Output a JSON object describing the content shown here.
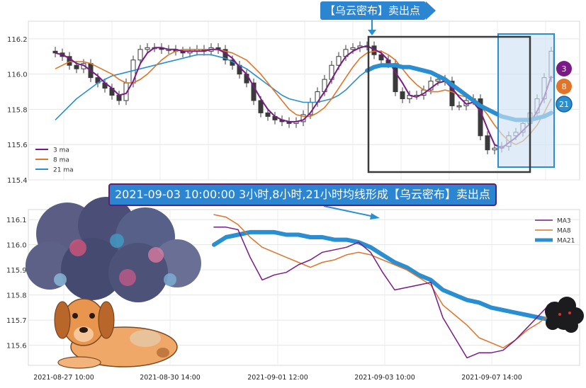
{
  "colors": {
    "ma3": "#7a1a86",
    "ma8": "#e07428",
    "ma21": "#2a8fd0",
    "box_dark": "#3a3a3a",
    "box_blue": "#2a8fd0",
    "candle": "#3a3a3a"
  },
  "top_banner": "【乌云密布】卖出点",
  "mid_banner": "2021-09-03 10:00:00 3小时,8小时,21小时均线形成【乌云密布】卖出点",
  "badges": [
    "3",
    "8",
    "21"
  ],
  "chart_data": [
    {
      "type": "candlestick",
      "ylim": [
        115.4,
        116.3
      ],
      "y_ticks": [
        "116.2",
        "116.0",
        "115.8",
        "115.6",
        "115.4"
      ],
      "legend": {
        "placement": "bottom-left",
        "entries": [
          "3 ma",
          "8 ma",
          "21 ma"
        ]
      },
      "close": [
        116.12,
        116.1,
        116.05,
        116.03,
        116.06,
        115.98,
        115.95,
        115.92,
        115.88,
        115.85,
        115.95,
        116.08,
        116.14,
        116.15,
        116.15,
        116.14,
        116.14,
        116.13,
        116.12,
        116.13,
        116.14,
        116.13,
        116.15,
        116.14,
        116.08,
        116.05,
        116.0,
        115.95,
        115.85,
        115.78,
        115.76,
        115.74,
        115.73,
        115.72,
        115.73,
        115.77,
        115.84,
        115.9,
        115.97,
        116.05,
        116.1,
        116.14,
        116.15,
        116.16,
        116.16,
        116.11,
        116.08,
        116.06,
        115.9,
        115.86,
        115.88,
        115.88,
        115.91,
        115.96,
        115.97,
        115.96,
        115.82,
        115.82,
        115.85,
        115.86,
        115.65,
        115.57,
        115.58,
        115.59,
        115.65,
        115.67,
        115.72,
        115.78,
        115.86,
        115.98,
        116.13
      ],
      "ma3": [
        116.12,
        116.11,
        116.09,
        116.06,
        116.05,
        116.02,
        115.99,
        115.95,
        115.92,
        115.88,
        115.89,
        115.96,
        116.06,
        116.12,
        116.15,
        116.15,
        116.14,
        116.14,
        116.13,
        116.13,
        116.13,
        116.13,
        116.14,
        116.14,
        116.12,
        116.09,
        116.04,
        116.0,
        115.93,
        115.86,
        115.8,
        115.76,
        115.74,
        115.73,
        115.73,
        115.74,
        115.78,
        115.84,
        115.9,
        115.97,
        116.04,
        116.1,
        116.13,
        116.15,
        116.16,
        116.14,
        116.12,
        116.08,
        116.01,
        115.95,
        115.88,
        115.87,
        115.89,
        115.92,
        115.95,
        115.96,
        115.92,
        115.87,
        115.83,
        115.84,
        115.79,
        115.69,
        115.6,
        115.58,
        115.61,
        115.64,
        115.68,
        115.72,
        115.79,
        115.87,
        115.99
      ],
      "ma8": [
        116.03,
        116.05,
        116.07,
        116.07,
        116.07,
        116.06,
        116.04,
        116.02,
        116.0,
        115.97,
        115.95,
        115.95,
        115.97,
        116.0,
        116.04,
        116.08,
        116.11,
        116.13,
        116.14,
        116.14,
        116.14,
        116.14,
        116.14,
        116.14,
        116.13,
        116.12,
        116.1,
        116.08,
        116.04,
        116.0,
        115.95,
        115.9,
        115.85,
        115.8,
        115.77,
        115.76,
        115.76,
        115.78,
        115.81,
        115.86,
        115.92,
        115.98,
        116.04,
        116.09,
        116.12,
        116.13,
        116.13,
        116.11,
        116.08,
        116.03,
        115.98,
        115.94,
        115.91,
        115.9,
        115.9,
        115.91,
        115.9,
        115.88,
        115.87,
        115.86,
        115.82,
        115.77,
        115.71,
        115.66,
        115.62,
        115.6,
        115.62,
        115.66,
        115.71,
        115.78,
        115.86
      ],
      "ma21": [
        115.74,
        115.78,
        115.82,
        115.86,
        115.89,
        115.92,
        115.95,
        115.97,
        115.99,
        116.0,
        116.01,
        116.02,
        116.03,
        116.04,
        116.05,
        116.06,
        116.07,
        116.08,
        116.09,
        116.1,
        116.11,
        116.11,
        116.11,
        116.1,
        116.09,
        116.07,
        116.05,
        116.03,
        116.0,
        115.97,
        115.94,
        115.91,
        115.88,
        115.86,
        115.85,
        115.84,
        115.84,
        115.84,
        115.85,
        115.86,
        115.88,
        115.91,
        115.95,
        115.99,
        116.02,
        116.04,
        116.05,
        116.05,
        116.05,
        116.04,
        116.04,
        116.03,
        116.02,
        116.01,
        115.99,
        115.97,
        115.94,
        115.91,
        115.88,
        115.85,
        115.82,
        115.8,
        115.78,
        115.76,
        115.75,
        115.74,
        115.74,
        115.74,
        115.75,
        115.76,
        115.78
      ]
    },
    {
      "type": "line",
      "ylim": [
        115.52,
        116.14
      ],
      "y_ticks": [
        "116.1",
        "116.0",
        "115.9",
        "115.8",
        "115.7",
        "115.6"
      ],
      "x_ticks": [
        "2021-08-27 10:00",
        "2021-08-30 14:00",
        "2021-09-01 12:00",
        "2021-09-03 10:00",
        "2021-09-07 14:00"
      ],
      "legend": {
        "placement": "top-right",
        "entries": [
          "MA3",
          "MA8",
          "MA21"
        ]
      },
      "series": [
        {
          "name": "MA3",
          "values": [
            116.07,
            116.07,
            116.06,
            115.95,
            115.86,
            115.88,
            115.89,
            115.92,
            115.94,
            115.97,
            115.98,
            115.99,
            116.01,
            115.97,
            115.89,
            115.82,
            115.83,
            115.84,
            115.85,
            115.71,
            115.63,
            115.55,
            115.57,
            115.57,
            115.58,
            115.62,
            115.67,
            115.72,
            115.77
          ]
        },
        {
          "name": "MA8",
          "values": [
            116.12,
            116.11,
            116.08,
            116.03,
            115.99,
            115.97,
            115.95,
            115.93,
            115.91,
            115.93,
            115.94,
            115.96,
            115.97,
            115.96,
            115.94,
            115.92,
            115.9,
            115.87,
            115.84,
            115.76,
            115.72,
            115.68,
            115.63,
            115.61,
            115.59,
            115.62,
            115.66,
            115.69,
            115.73
          ]
        },
        {
          "name": "MA21",
          "values": [
            116.0,
            116.03,
            116.04,
            116.05,
            116.05,
            116.05,
            116.04,
            116.04,
            116.03,
            116.03,
            116.02,
            116.02,
            116.01,
            115.99,
            115.96,
            115.93,
            115.91,
            115.88,
            115.86,
            115.82,
            115.8,
            115.78,
            115.77,
            115.75,
            115.74,
            115.73,
            115.72,
            115.71,
            115.7
          ]
        }
      ]
    }
  ]
}
